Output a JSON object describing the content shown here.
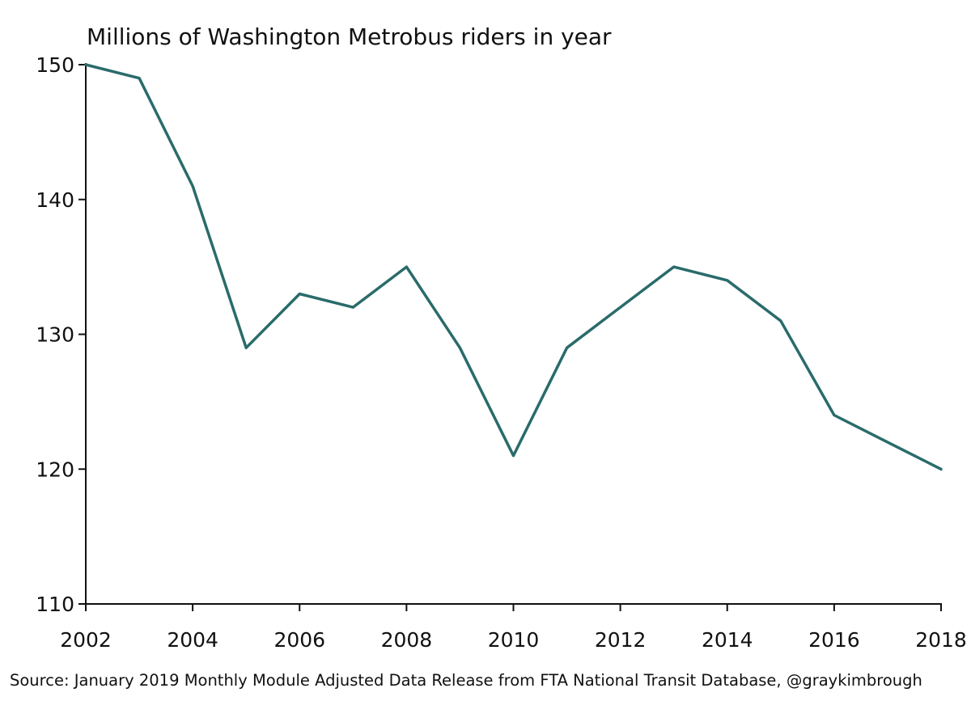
{
  "chart_data": {
    "type": "line",
    "title": "Millions of Washington Metrobus riders in year",
    "xlabel": "",
    "ylabel": "",
    "source": "Source: January 2019 Monthly Module Adjusted Data Release from FTA National Transit Database, @graykimbrough",
    "x": [
      2002,
      2003,
      2004,
      2005,
      2006,
      2007,
      2008,
      2009,
      2010,
      2011,
      2012,
      2013,
      2014,
      2015,
      2016,
      2017,
      2018
    ],
    "series": [
      {
        "values": [
          150,
          149,
          141,
          129,
          133,
          132,
          135,
          129,
          121,
          129,
          132,
          135,
          134,
          131,
          124,
          122,
          120
        ]
      }
    ],
    "xlim": [
      2002,
      2018
    ],
    "ylim": [
      110,
      150
    ],
    "xticks": [
      "2002",
      "2004",
      "2006",
      "2008",
      "2010",
      "2012",
      "2014",
      "2016",
      "2018"
    ],
    "yticks": [
      "110",
      "120",
      "130",
      "140",
      "150"
    ],
    "grid": false,
    "legend": "none",
    "colors": {
      "line": "#2a6b6b",
      "axis": "#111111",
      "background": "#ffffff"
    }
  }
}
